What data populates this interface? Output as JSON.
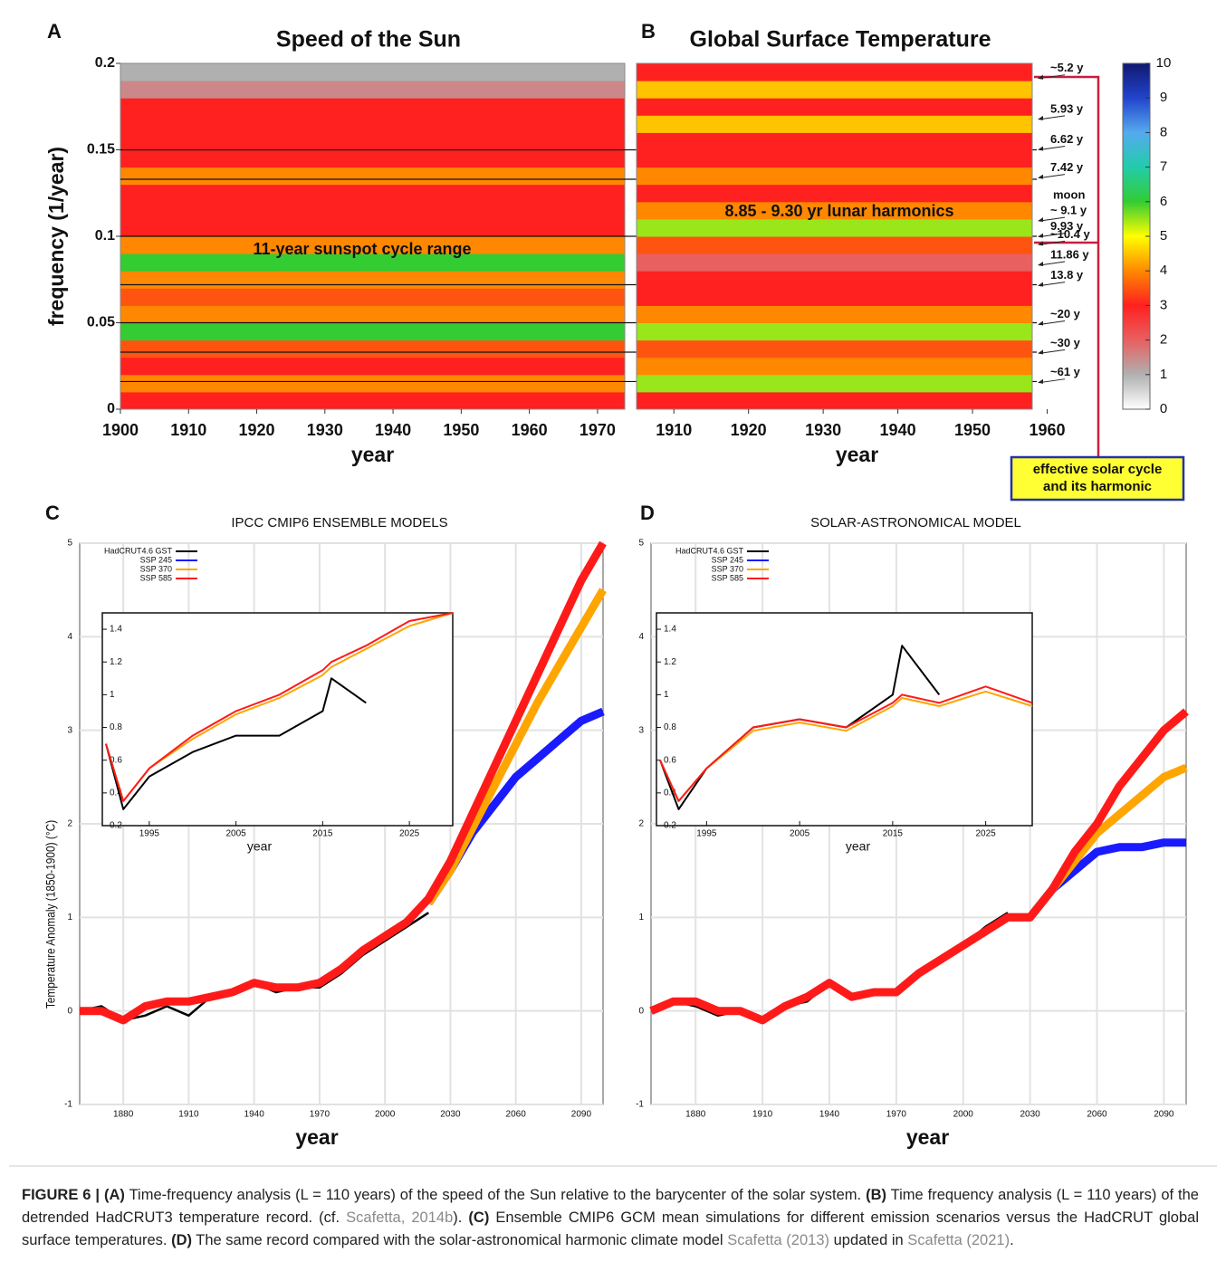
{
  "chart_data": [
    {
      "type": "heatmap",
      "label": "A",
      "title": "Speed of the Sun",
      "xlabel": "year",
      "ylabel": "frequency  (1/year)",
      "note": "11-year sunspot cycle range",
      "xlim": [
        1900,
        1974
      ],
      "xticks": [
        1900,
        1910,
        1920,
        1930,
        1940,
        1950,
        1960,
        1970
      ],
      "ylim": [
        0,
        0.2
      ],
      "yticks": [
        0,
        0.05,
        0.1,
        0.15,
        0.2
      ],
      "frequencies": [
        0.005,
        0.015,
        0.025,
        0.035,
        0.045,
        0.055,
        0.065,
        0.075,
        0.085,
        0.095,
        0.105,
        0.115,
        0.125,
        0.135,
        0.145,
        0.155,
        0.165,
        0.175,
        0.185,
        0.195
      ],
      "values": [
        3,
        4,
        3,
        3.5,
        6,
        4,
        3.5,
        4,
        6,
        4,
        3,
        3,
        3,
        4,
        3,
        3,
        3,
        3,
        1.5,
        1
      ],
      "hlines": [
        0.016,
        0.033,
        0.05,
        0.072,
        0.1,
        0.133,
        0.15
      ]
    },
    {
      "type": "heatmap",
      "label": "B",
      "title": "Global Surface Temperature",
      "xlabel": "year",
      "note": "8.85 - 9.30 yr lunar harmonics",
      "xlim": [
        1905,
        1958
      ],
      "xticks": [
        1910,
        1920,
        1930,
        1940,
        1950,
        1960
      ],
      "ylim": [
        0,
        0.2
      ],
      "frequencies": [
        0.005,
        0.015,
        0.025,
        0.035,
        0.045,
        0.055,
        0.065,
        0.075,
        0.085,
        0.095,
        0.105,
        0.115,
        0.125,
        0.135,
        0.145,
        0.155,
        0.165,
        0.175,
        0.185,
        0.195
      ],
      "values": [
        3,
        5.5,
        4,
        3.5,
        5.5,
        4,
        3,
        3,
        2,
        3.5,
        5.5,
        4,
        3,
        4,
        3,
        3,
        4.5,
        3,
        4.5,
        3
      ],
      "annotations": [
        {
          "text": "~5.2 y",
          "period": 5.2,
          "color": "#2a3a9a"
        },
        {
          "text": "5.93 y",
          "period": 5.93,
          "color": "#111111"
        },
        {
          "text": "6.62 y",
          "period": 6.62,
          "color": "#111111"
        },
        {
          "text": "7.42 y",
          "period": 7.42,
          "color": "#111111"
        },
        {
          "text": "~ 9.1 y",
          "period": 9.1,
          "color": "#2a3a9a"
        },
        {
          "text": "9.93 y",
          "period": 9.93,
          "color": "#111111"
        },
        {
          "text": "~10.4 y",
          "period": 10.4,
          "color": "#2a3a9a"
        },
        {
          "text": "11.86 y",
          "period": 11.86,
          "color": "#111111"
        },
        {
          "text": "13.8 y",
          "period": 13.8,
          "color": "#111111"
        },
        {
          "text": "~20 y",
          "period": 20,
          "color": "#111111"
        },
        {
          "text": "~30 y",
          "period": 30,
          "color": "#111111"
        },
        {
          "text": "~61 y",
          "period": 61,
          "color": "#111111"
        }
      ],
      "moon_label": "moon",
      "callout": [
        "effective solar cycle",
        "and its harmonic"
      ],
      "colorbar": {
        "lim": [
          0,
          10
        ],
        "ticks": [
          0,
          1,
          2,
          3,
          4,
          5,
          6,
          7,
          8,
          9,
          10
        ],
        "colors": [
          "#ffffff",
          "#b0b0b0",
          "#e86060",
          "#ff2020",
          "#ff8800",
          "#ffff00",
          "#33cc33",
          "#22ccaa",
          "#55aaee",
          "#2244cc",
          "#101870"
        ]
      }
    },
    {
      "type": "line",
      "label": "C",
      "title": "IPCC CMIP6 ENSEMBLE MODELS",
      "xlabel": "year",
      "ylabel": "Temperature Anomaly (1850-1900) (°C)",
      "xlim": [
        1860,
        2100
      ],
      "xticks": [
        1880,
        1910,
        1940,
        1970,
        2000,
        2030,
        2060,
        2090
      ],
      "ylim": [
        -1,
        5
      ],
      "yticks": [
        -1,
        0,
        1,
        2,
        3,
        4,
        5
      ],
      "grid": true,
      "legend": "top-left",
      "x": [
        1860,
        1870,
        1880,
        1890,
        1900,
        1910,
        1920,
        1930,
        1940,
        1950,
        1960,
        1970,
        1980,
        1990,
        2000,
        2010,
        2020,
        2030,
        2040,
        2050,
        2060,
        2070,
        2080,
        2090,
        2100
      ],
      "series": [
        {
          "name": "HadCRUT4.6 GST",
          "color": "#000000",
          "values": [
            0,
            0.05,
            -0.1,
            -0.05,
            0.05,
            -0.05,
            0.15,
            0.2,
            0.3,
            0.2,
            0.25,
            0.25,
            0.4,
            0.6,
            0.75,
            0.9,
            1.05,
            null,
            null,
            null,
            null,
            null,
            null,
            null,
            null
          ]
        },
        {
          "name": "SSP 245",
          "color": "#1a1aff",
          "values": [
            null,
            null,
            null,
            null,
            null,
            null,
            null,
            null,
            null,
            null,
            null,
            null,
            null,
            null,
            null,
            null,
            1.15,
            1.5,
            1.9,
            2.2,
            2.5,
            2.7,
            2.9,
            3.1,
            3.2
          ]
        },
        {
          "name": "SSP 370",
          "color": "#ffa500",
          "values": [
            null,
            null,
            null,
            null,
            null,
            null,
            null,
            null,
            null,
            null,
            null,
            null,
            null,
            null,
            null,
            null,
            1.15,
            1.5,
            1.95,
            2.4,
            2.85,
            3.3,
            3.7,
            4.1,
            4.5
          ]
        },
        {
          "name": "SSP 585",
          "color": "#ff1a1a",
          "values": [
            0,
            0,
            -0.1,
            0.05,
            0.1,
            0.1,
            0.15,
            0.2,
            0.3,
            0.25,
            0.25,
            0.3,
            0.45,
            0.65,
            0.8,
            0.95,
            1.2,
            1.6,
            2.1,
            2.6,
            3.1,
            3.6,
            4.1,
            4.6,
            5
          ]
        }
      ],
      "inset": {
        "xlabel": "year",
        "xlim": [
          1990,
          2030
        ],
        "xticks": [
          1995,
          2005,
          2015,
          2025
        ],
        "ylim": [
          0.2,
          1.5
        ],
        "yticks": [
          0.2,
          0.4,
          0.6,
          0.8,
          1,
          1.2,
          1.4
        ],
        "x": [
          1990,
          1992,
          1995,
          2000,
          2005,
          2010,
          2015,
          2016,
          2020,
          2025,
          2030
        ],
        "series": [
          {
            "color": "#000000",
            "values": [
              0.7,
              0.3,
              0.5,
              0.65,
              0.75,
              0.75,
              0.9,
              1.1,
              0.95,
              null,
              null
            ]
          },
          {
            "color": "#ffa500",
            "values": [
              0.7,
              0.35,
              0.55,
              0.73,
              0.88,
              0.98,
              1.12,
              1.17,
              1.28,
              1.42,
              1.5
            ]
          },
          {
            "color": "#ff1a1a",
            "values": [
              0.7,
              0.35,
              0.55,
              0.75,
              0.9,
              1,
              1.15,
              1.2,
              1.3,
              1.45,
              1.5
            ]
          }
        ]
      }
    },
    {
      "type": "line",
      "label": "D",
      "title": "SOLAR-ASTRONOMICAL MODEL",
      "xlabel": "year",
      "xlim": [
        1860,
        2100
      ],
      "xticks": [
        1880,
        1910,
        1940,
        1970,
        2000,
        2030,
        2060,
        2090
      ],
      "ylim": [
        -1,
        5
      ],
      "yticks": [
        -1,
        0,
        1,
        2,
        3,
        4,
        5
      ],
      "grid": true,
      "legend": "top-left",
      "x": [
        1860,
        1870,
        1880,
        1890,
        1900,
        1910,
        1920,
        1930,
        1940,
        1950,
        1960,
        1970,
        1980,
        1990,
        2000,
        2010,
        2020,
        2030,
        2040,
        2050,
        2060,
        2070,
        2080,
        2090,
        2100
      ],
      "series": [
        {
          "name": "HadCRUT4.6 GST",
          "color": "#000000",
          "values": [
            0,
            0.1,
            0.05,
            -0.05,
            0,
            -0.1,
            0.05,
            0.1,
            0.3,
            0.15,
            0.2,
            0.2,
            0.4,
            0.55,
            0.7,
            0.9,
            1.05,
            null,
            null,
            null,
            null,
            null,
            null,
            null,
            null
          ]
        },
        {
          "name": "SSP 245",
          "color": "#1a1aff",
          "values": [
            null,
            null,
            null,
            null,
            null,
            null,
            null,
            null,
            null,
            null,
            null,
            null,
            null,
            null,
            null,
            null,
            1,
            1,
            1.3,
            1.5,
            1.7,
            1.75,
            1.75,
            1.8,
            1.8
          ]
        },
        {
          "name": "SSP 370",
          "color": "#ffa500",
          "values": [
            null,
            null,
            null,
            null,
            null,
            null,
            null,
            null,
            null,
            null,
            null,
            null,
            null,
            null,
            null,
            null,
            1,
            1,
            1.3,
            1.6,
            1.9,
            2.1,
            2.3,
            2.5,
            2.6
          ]
        },
        {
          "name": "SSP 585",
          "color": "#ff1a1a",
          "values": [
            0,
            0.1,
            0.1,
            0,
            0,
            -0.1,
            0.05,
            0.15,
            0.3,
            0.15,
            0.2,
            0.2,
            0.4,
            0.55,
            0.7,
            0.85,
            1,
            1,
            1.3,
            1.7,
            2,
            2.4,
            2.7,
            3,
            3.2
          ]
        }
      ],
      "inset": {
        "xlabel": "year",
        "xlim": [
          1990,
          2030
        ],
        "xticks": [
          1995,
          2005,
          2015,
          2025
        ],
        "ylim": [
          0.2,
          1.5
        ],
        "yticks": [
          0.2,
          0.4,
          0.6,
          0.8,
          1,
          1.2,
          1.4
        ],
        "x": [
          1990,
          1992,
          1995,
          2000,
          2005,
          2010,
          2015,
          2016,
          2020,
          2025,
          2030
        ],
        "series": [
          {
            "color": "#000000",
            "values": [
              0.6,
              0.3,
              0.55,
              0.8,
              0.85,
              0.8,
              1,
              1.3,
              1,
              null,
              null
            ]
          },
          {
            "color": "#ffa500",
            "values": [
              0.6,
              0.35,
              0.55,
              0.78,
              0.83,
              0.78,
              0.93,
              0.98,
              0.93,
              1.02,
              0.93
            ]
          },
          {
            "color": "#ff1a1a",
            "values": [
              0.6,
              0.35,
              0.55,
              0.8,
              0.85,
              0.8,
              0.95,
              1,
              0.95,
              1.05,
              0.95
            ]
          }
        ]
      }
    }
  ],
  "caption": {
    "runs": [
      {
        "text": "FIGURE 6 | (A)",
        "style": "bold"
      },
      {
        "text": " Time-frequency analysis (L = 110 years) of the speed of the Sun relative to the barycenter of the solar system. ",
        "style": "plain"
      },
      {
        "text": "(B)",
        "style": "bold"
      },
      {
        "text": " Time frequency analysis (L = 110 years) of the detrended HadCRUT3 temperature record. (cf. ",
        "style": "plain"
      },
      {
        "text": "Scafetta, 2014b",
        "style": "link"
      },
      {
        "text": "). ",
        "style": "plain"
      },
      {
        "text": "(C)",
        "style": "bold"
      },
      {
        "text": " Ensemble CMIP6 GCM mean simulations for different emission scenarios versus the HadCRUT global surface temperatures. ",
        "style": "plain"
      },
      {
        "text": "(D)",
        "style": "bold"
      },
      {
        "text": " The same record compared with the solar-astronomical harmonic climate model ",
        "style": "plain"
      },
      {
        "text": "Scafetta (2013)",
        "style": "link"
      },
      {
        "text": " updated in ",
        "style": "plain"
      },
      {
        "text": "Scafetta (2021)",
        "style": "link"
      },
      {
        "text": ".",
        "style": "plain"
      }
    ]
  }
}
